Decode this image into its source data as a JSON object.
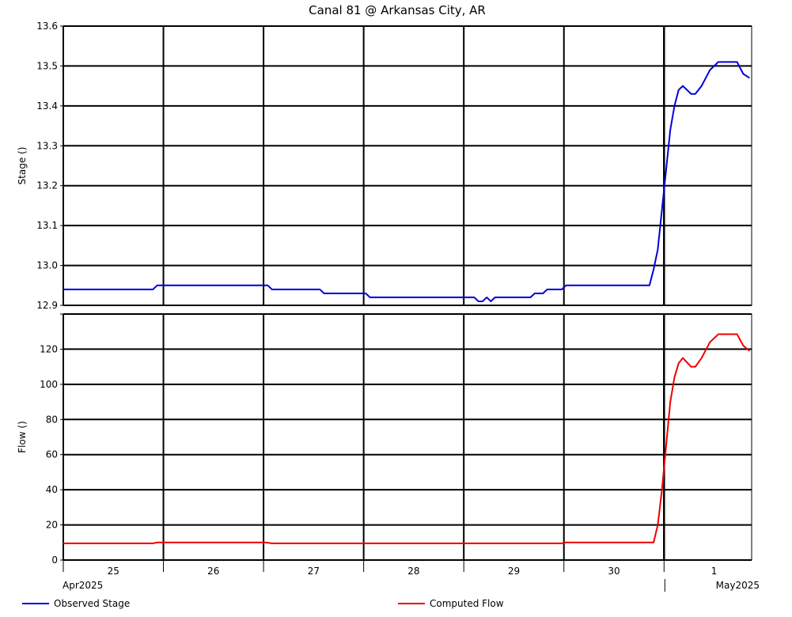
{
  "chart_data": {
    "type": "line",
    "title": "Canal 81 @ Arkansas City, AR",
    "x_axis": {
      "unit": "hours since Apr 25 00:00",
      "range": [
        0,
        165
      ],
      "day_ticks": [
        0,
        24,
        48,
        72,
        96,
        120,
        144
      ],
      "day_labels": [
        {
          "label": "25",
          "center": 12
        },
        {
          "label": "26",
          "center": 36
        },
        {
          "label": "27",
          "center": 60
        },
        {
          "label": "28",
          "center": 84
        },
        {
          "label": "29",
          "center": 108
        },
        {
          "label": "30",
          "center": 132
        },
        {
          "label": "1",
          "center": 156
        }
      ],
      "month_labels": [
        {
          "label": "Apr2025",
          "anchor": "start",
          "at": 0
        },
        {
          "label": "May2025",
          "anchor": "end",
          "at": 165
        }
      ],
      "month_boundary": 144
    },
    "panels": [
      {
        "name": "stage-panel",
        "ylabel": "Stage ()",
        "ylim": [
          12.9,
          13.6
        ],
        "yticks": [
          12.9,
          13.0,
          13.1,
          13.2,
          13.3,
          13.4,
          13.5,
          13.6
        ],
        "tick_labels": [
          "12.9",
          "13.0",
          "13.1",
          "13.2",
          "13.3",
          "13.4",
          "13.5",
          "13.6"
        ],
        "grid": true,
        "series": [
          {
            "name": "Observed Stage",
            "color": "#0000dd",
            "points": [
              [
                -1,
                12.94
              ],
              [
                21.5,
                12.94
              ],
              [
                22.5,
                12.95
              ],
              [
                49,
                12.95
              ],
              [
                50,
                12.94
              ],
              [
                61.5,
                12.94
              ],
              [
                62.5,
                12.93
              ],
              [
                72.5,
                12.93
              ],
              [
                73.5,
                12.92
              ],
              [
                98.5,
                12.92
              ],
              [
                99.5,
                12.91
              ],
              [
                100.5,
                12.91
              ],
              [
                101.5,
                12.92
              ],
              [
                102.5,
                12.91
              ],
              [
                103.5,
                12.92
              ],
              [
                112,
                12.92
              ],
              [
                113,
                12.93
              ],
              [
                115,
                12.93
              ],
              [
                116,
                12.94
              ],
              [
                119.5,
                12.94
              ],
              [
                120.5,
                12.95
              ],
              [
                140.5,
                12.95
              ],
              [
                141.5,
                12.99
              ],
              [
                142.5,
                13.04
              ],
              [
                143.5,
                13.14
              ],
              [
                144.5,
                13.24
              ],
              [
                145.5,
                13.34
              ],
              [
                146.5,
                13.4
              ],
              [
                147.5,
                13.44
              ],
              [
                148.5,
                13.45
              ],
              [
                150.5,
                13.43
              ],
              [
                151.5,
                13.43
              ],
              [
                153,
                13.45
              ],
              [
                155,
                13.49
              ],
              [
                157,
                13.51
              ],
              [
                161.5,
                13.51
              ],
              [
                163,
                13.48
              ],
              [
                164.5,
                13.47
              ]
            ]
          }
        ]
      },
      {
        "name": "flow-panel",
        "ylabel": "Flow ()",
        "ylim": [
          0,
          140
        ],
        "yticks": [
          0,
          20,
          40,
          60,
          80,
          100,
          120,
          140
        ],
        "tick_labels": [
          "0",
          "20",
          "40",
          "60",
          "80",
          "100",
          "120",
          ""
        ],
        "grid": true,
        "series": [
          {
            "name": "Computed Flow",
            "color": "#ee0000",
            "points": [
              [
                -1,
                9.5
              ],
              [
                21.5,
                9.5
              ],
              [
                22.5,
                10
              ],
              [
                48.5,
                10
              ],
              [
                50,
                9.5
              ],
              [
                119.5,
                9.5
              ],
              [
                120.5,
                10
              ],
              [
                141.5,
                10
              ],
              [
                142.5,
                20
              ],
              [
                143.5,
                40
              ],
              [
                144.5,
                65
              ],
              [
                145.5,
                90
              ],
              [
                146.5,
                104
              ],
              [
                147.5,
                112
              ],
              [
                148.5,
                115
              ],
              [
                150.5,
                110
              ],
              [
                151.5,
                110
              ],
              [
                153,
                115
              ],
              [
                155,
                124
              ],
              [
                157,
                128.5
              ],
              [
                161.5,
                128.5
              ],
              [
                163,
                122
              ],
              [
                164.5,
                119
              ]
            ]
          }
        ]
      }
    ],
    "legend": {
      "placement": "bottom",
      "entries": [
        {
          "name": "Observed Stage",
          "color": "#0000dd"
        },
        {
          "name": "Computed Flow",
          "color": "#ee0000"
        }
      ]
    }
  }
}
